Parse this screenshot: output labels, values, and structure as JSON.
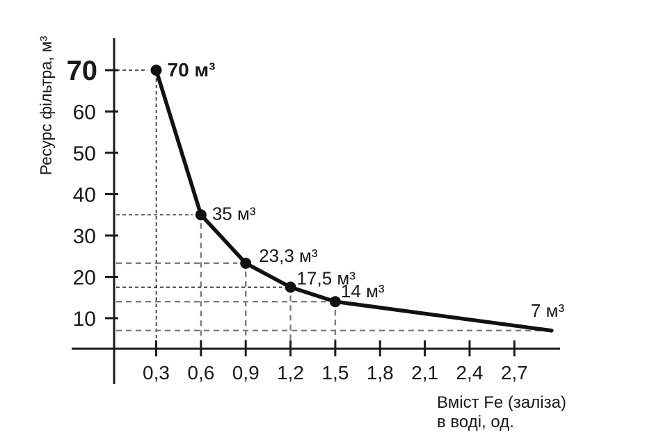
{
  "chart_data": {
    "type": "line",
    "title": "",
    "legend": "none",
    "grid": "dashed guide lines from both axes to each data point",
    "y_axis": {
      "title": "Ресурс фільтра, м³",
      "tick_labels": [
        "70",
        "60",
        "50",
        "40",
        "30",
        "20",
        "10"
      ],
      "tick_values": [
        70,
        60,
        50,
        40,
        30,
        20,
        10
      ],
      "range_shown": [
        0,
        75
      ]
    },
    "x_axis": {
      "title_line1": "Вміст Fe (заліза)",
      "title_line2": "в воді, од.",
      "tick_labels": [
        "0,3",
        "0,6",
        "0,9",
        "1,2",
        "1,5",
        "1,8",
        "2,1",
        "2,4",
        "2,7"
      ],
      "tick_values": [
        0.3,
        0.6,
        0.9,
        1.2,
        1.5,
        1.8,
        2.1,
        2.4,
        2.7
      ]
    },
    "series": [
      {
        "name": "filter-resource-vs-iron-content",
        "points": [
          {
            "x": 0.3,
            "y": 70,
            "label": "70 м³",
            "marker": true,
            "emphasis": true
          },
          {
            "x": 0.6,
            "y": 35,
            "label": "35 м³",
            "marker": true,
            "emphasis": false
          },
          {
            "x": 0.9,
            "y": 23.3,
            "label": "23,3 м³",
            "marker": true,
            "emphasis": false
          },
          {
            "x": 1.2,
            "y": 17.5,
            "label": "17,5 м³",
            "marker": true,
            "emphasis": false
          },
          {
            "x": 1.5,
            "y": 14,
            "label": "14 м³",
            "marker": true,
            "emphasis": false
          },
          {
            "x": 2.95,
            "y": 7,
            "label": "7 м³",
            "marker": false,
            "emphasis": false
          }
        ]
      }
    ],
    "colors": {
      "line": "#111111",
      "guide_dark": "#1a1a1a",
      "guide_gray": "#7d7d7d",
      "text": "#1a1a1a",
      "background": "#ffffff"
    }
  }
}
